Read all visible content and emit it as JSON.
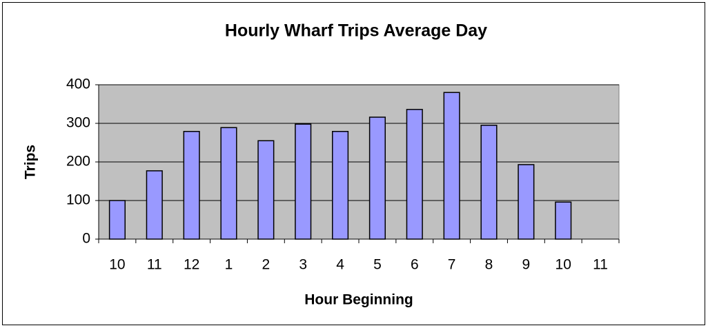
{
  "chart_data": {
    "type": "bar",
    "title": "Hourly Wharf Trips Average Day",
    "x_label": "Hour Beginning",
    "y_label": "Trips",
    "categories": [
      "10",
      "11",
      "12",
      "1",
      "2",
      "3",
      "4",
      "5",
      "6",
      "7",
      "8",
      "9",
      "10",
      "11"
    ],
    "values": [
      100,
      177,
      279,
      289,
      255,
      298,
      279,
      316,
      336,
      380,
      295,
      193,
      96,
      null
    ],
    "color": "#9999ff",
    "plot_background": "#c0c0c0",
    "ylim": [
      0,
      400
    ],
    "yticks": [
      0,
      100,
      200,
      300,
      400
    ],
    "grid": true
  }
}
